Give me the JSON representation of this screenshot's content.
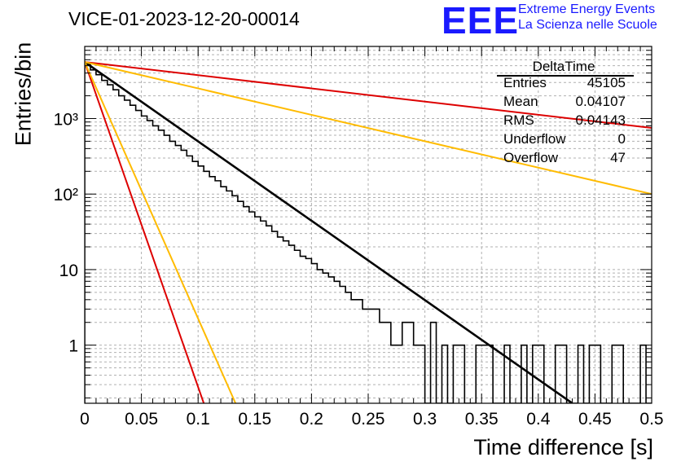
{
  "title": "VICE-01-2023-12-20-00014",
  "logo": {
    "mark": "EEE",
    "line1": "Extreme Energy Events",
    "line2": "La Scienza nelle Scuole",
    "color": "#1a1aff"
  },
  "stats_box": {
    "title": "DeltaTime",
    "rows": [
      {
        "label": "Entries",
        "value": "45105"
      },
      {
        "label": "Mean",
        "value": "0.04107"
      },
      {
        "label": "RMS",
        "value": "0.04143"
      },
      {
        "label": "Underflow",
        "value": "0"
      },
      {
        "label": "Overflow",
        "value": "47"
      }
    ]
  },
  "chart_data": {
    "type": "line",
    "title": "VICE-01-2023-12-20-00014",
    "xlabel": "Time difference [s]",
    "ylabel": "Entries/bin",
    "xlim": [
      0,
      0.5
    ],
    "ylim": [
      0.17,
      9000
    ],
    "ylog": true,
    "grid": true,
    "x_ticks": [
      "0",
      "0.05",
      "0.1",
      "0.15",
      "0.2",
      "0.25",
      "0.3",
      "0.35",
      "0.4",
      "0.45",
      "0.5"
    ],
    "y_ticks": [
      "1",
      "10",
      "10²",
      "10³"
    ],
    "histogram": {
      "color": "#000000",
      "bin_width": 0.005,
      "values": [
        5200,
        4400,
        3800,
        3200,
        2800,
        2400,
        2000,
        1750,
        1500,
        1280,
        1080,
        940,
        800,
        700,
        600,
        500,
        440,
        380,
        320,
        270,
        235,
        200,
        170,
        150,
        125,
        110,
        95,
        80,
        68,
        58,
        50,
        44,
        38,
        32,
        27,
        24,
        21,
        18,
        15,
        14,
        12,
        10,
        9,
        8,
        7,
        6,
        5,
        4,
        4,
        3,
        3,
        3,
        2,
        2,
        1,
        1,
        2,
        2,
        1,
        1,
        0,
        2,
        0,
        1,
        0,
        1,
        1,
        0,
        0,
        1,
        1,
        1,
        0,
        0,
        1,
        0,
        0,
        1,
        0,
        1,
        1,
        0,
        0,
        1,
        1,
        0,
        0,
        1,
        0,
        1,
        1,
        0,
        0,
        1,
        1,
        0,
        0,
        0,
        1,
        0
      ]
    },
    "fits": [
      {
        "color": "#000000",
        "points": [
          [
            0,
            5600
          ],
          [
            0.43,
            0.17
          ]
        ]
      },
      {
        "color": "#dd0000",
        "points": [
          [
            0,
            5600
          ],
          [
            0.5,
            750
          ]
        ]
      },
      {
        "color": "#ffbb00",
        "points": [
          [
            0,
            5600
          ],
          [
            0.5,
            100
          ]
        ]
      },
      {
        "color": "#dd0000",
        "points": [
          [
            0,
            5600
          ],
          [
            0.105,
            0.17
          ]
        ]
      },
      {
        "color": "#ffbb00",
        "points": [
          [
            0,
            5600
          ],
          [
            0.133,
            0.17
          ]
        ]
      }
    ]
  }
}
